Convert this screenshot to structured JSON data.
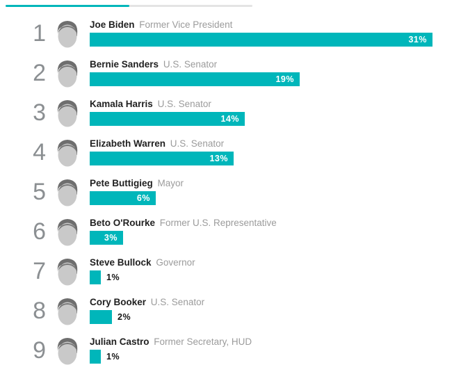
{
  "colors": {
    "accent": "#00b6ba",
    "track": "#e4e4e4",
    "rank_gray": "#8b8f92",
    "name_dark": "#212121",
    "title_gray": "#9b9b9b"
  },
  "top_indicator": {
    "description": "horizontal progress/scroll indicator, teal thumb on gray track"
  },
  "rows": [
    {
      "rank": "1",
      "name": "Joe Biden",
      "title": "Former Vice President",
      "value": 31,
      "label": "31%"
    },
    {
      "rank": "2",
      "name": "Bernie Sanders",
      "title": "U.S. Senator",
      "value": 19,
      "label": "19%"
    },
    {
      "rank": "3",
      "name": "Kamala Harris",
      "title": "U.S. Senator",
      "value": 14,
      "label": "14%"
    },
    {
      "rank": "4",
      "name": "Elizabeth Warren",
      "title": "U.S. Senator",
      "value": 13,
      "label": "13%"
    },
    {
      "rank": "5",
      "name": "Pete Buttigieg",
      "title": "Mayor",
      "value": 6,
      "label": "6%"
    },
    {
      "rank": "6",
      "name": "Beto O'Rourke",
      "title": "Former U.S. Representative",
      "value": 3,
      "label": "3%"
    },
    {
      "rank": "7",
      "name": "Steve Bullock",
      "title": "Governor",
      "value": 1,
      "label": "1%"
    },
    {
      "rank": "8",
      "name": "Cory Booker",
      "title": "U.S. Senator",
      "value": 2,
      "label": "2%"
    },
    {
      "rank": "9",
      "name": "Julian Castro",
      "title": "Former Secretary, HUD",
      "value": 1,
      "label": "1%"
    }
  ],
  "chart_data": {
    "type": "bar",
    "orientation": "horizontal",
    "categories": [
      "Joe Biden",
      "Bernie Sanders",
      "Kamala Harris",
      "Elizabeth Warren",
      "Pete Buttigieg",
      "Beto O'Rourke",
      "Steve Bullock",
      "Cory Booker",
      "Julian Castro"
    ],
    "subtitles": [
      "Former Vice President",
      "U.S. Senator",
      "U.S. Senator",
      "U.S. Senator",
      "Mayor",
      "Former U.S. Representative",
      "Governor",
      "U.S. Senator",
      "Former Secretary, HUD"
    ],
    "ranks": [
      1,
      2,
      3,
      4,
      5,
      6,
      7,
      8,
      9
    ],
    "values": [
      31,
      19,
      14,
      13,
      6,
      3,
      1,
      2,
      1
    ],
    "value_labels": [
      "31%",
      "19%",
      "14%",
      "13%",
      "6%",
      "3%",
      "1%",
      "2%",
      "1%"
    ],
    "xlim": [
      0,
      31
    ],
    "bar_color": "#00b6ba",
    "grid": false,
    "legend": false,
    "title": "",
    "xlabel": "",
    "ylabel": ""
  }
}
